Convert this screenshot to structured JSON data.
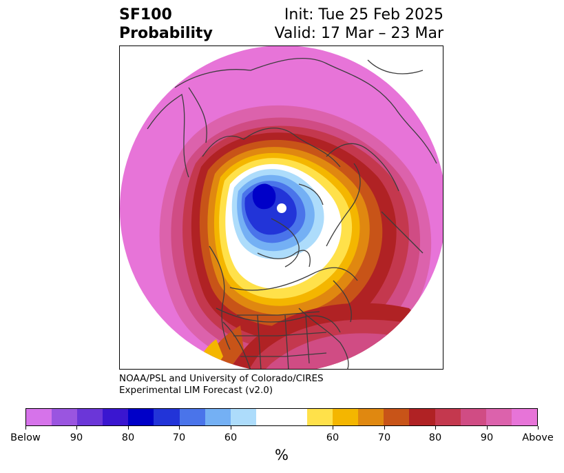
{
  "header": {
    "title_line1": "SF100",
    "title_line2": "Probability",
    "init": "Init: Tue 25 Feb 2025",
    "valid": "Valid: 17 Mar – 23 Mar"
  },
  "credit": {
    "line1": "NOAA/PSL and University of Colorado/CIRES",
    "line2": "Experimental LIM Forecast (v2.0)"
  },
  "colorbar": {
    "unit": "%",
    "colors": [
      "#d673ea",
      "#9a55e0",
      "#6b36d8",
      "#3a16d0",
      "#0000c8",
      "#2234d8",
      "#4a74ea",
      "#74b0f4",
      "#addcfb",
      "#ffffff",
      "#ffffff",
      "#ffe14a",
      "#f4b600",
      "#e08810",
      "#c85418",
      "#b02224",
      "#c4384e",
      "#d04c84",
      "#dc62ac",
      "#e774d8"
    ],
    "labels": [
      "Below",
      "90",
      "80",
      "70",
      "60",
      "60",
      "70",
      "80",
      "90",
      "Above"
    ]
  },
  "map": {
    "projection": "north-polar-stereographic",
    "colors": {
      "above_max": "#e774d8",
      "above_90": "#dc62ac",
      "above_85": "#d04c84",
      "above_80": "#c4384e",
      "above_75": "#b02224",
      "above_70": "#c85418",
      "above_65": "#e08810",
      "above_60": "#f4b600",
      "above_55": "#ffe14a",
      "neutral": "#ffffff",
      "below_55": "#addcfb",
      "below_60": "#74b0f4",
      "below_65": "#4a74ea",
      "below_70": "#2234d8",
      "below_75": "#0000c8",
      "coastline": "#3c3c3c"
    }
  }
}
